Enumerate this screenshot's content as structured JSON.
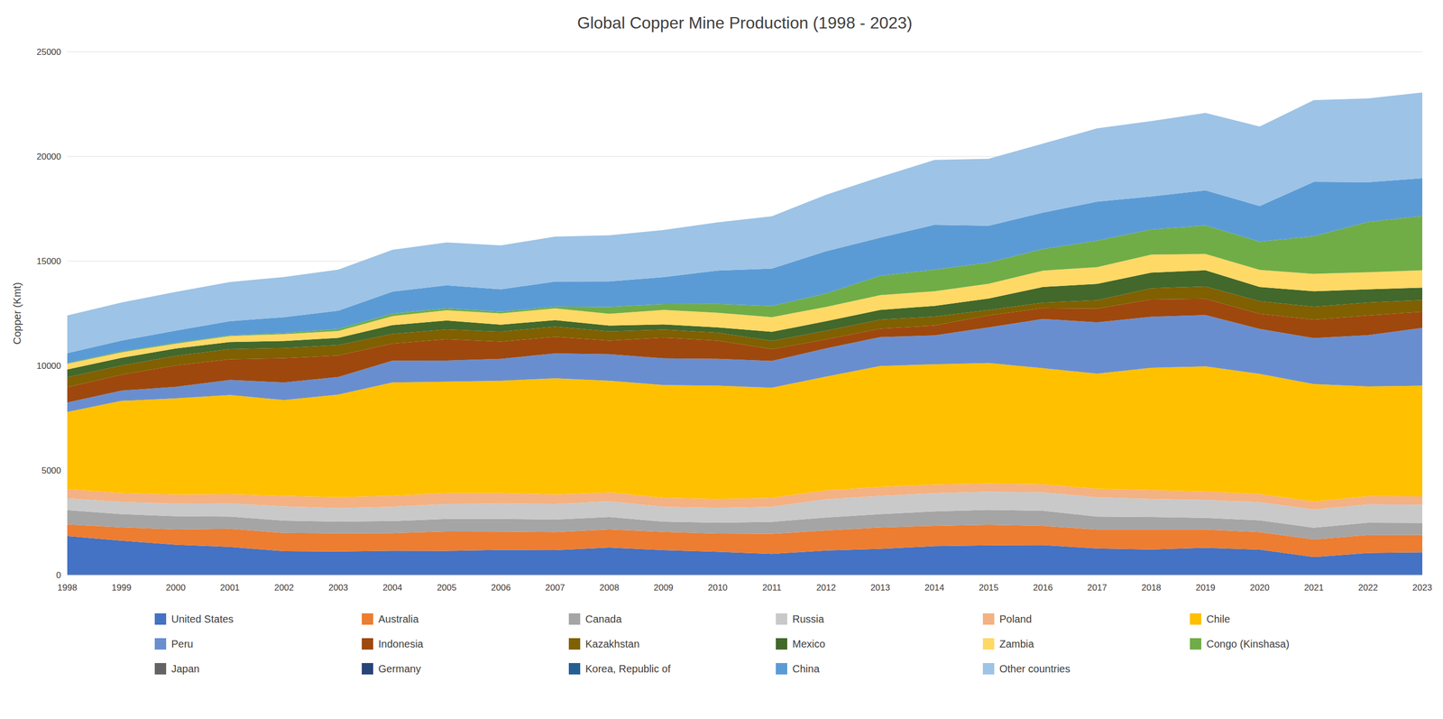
{
  "chart_data": {
    "type": "area",
    "stacked": true,
    "grid": true,
    "legend": "bottom",
    "title": "Global Copper Mine Production (1998 - 2023)",
    "ylabel": "Copper (Kmt)",
    "x": [
      1998,
      1999,
      2000,
      2001,
      2002,
      2003,
      2004,
      2005,
      2006,
      2007,
      2008,
      2009,
      2010,
      2011,
      2012,
      2013,
      2014,
      2015,
      2016,
      2017,
      2018,
      2019,
      2020,
      2021,
      2022,
      2023
    ],
    "xlim": [
      1998,
      2023
    ],
    "xticks": [
      1998,
      1999,
      2000,
      2001,
      2002,
      2003,
      2004,
      2005,
      2006,
      2007,
      2008,
      2009,
      2010,
      2011,
      2012,
      2013,
      2014,
      2015,
      2016,
      2017,
      2018,
      2019,
      2020,
      2021,
      2022,
      2023
    ],
    "ylim": [
      0,
      25000
    ],
    "yticks": [
      0,
      5000,
      10000,
      15000,
      20000,
      25000
    ],
    "series": [
      {
        "name": "United States",
        "color": "#4472C4",
        "values": [
          1860,
          1640,
          1450,
          1340,
          1140,
          1120,
          1160,
          1150,
          1200,
          1190,
          1310,
          1190,
          1110,
          1010,
          1170,
          1250,
          1380,
          1420,
          1430,
          1270,
          1220,
          1300,
          1210,
          860,
          1050,
          1080
        ]
      },
      {
        "name": "Australia",
        "color": "#ED7D31",
        "values": [
          560,
          640,
          730,
          870,
          870,
          870,
          840,
          930,
          870,
          860,
          870,
          870,
          870,
          960,
          960,
          1020,
          970,
          980,
          920,
          900,
          950,
          870,
          840,
          840,
          860,
          840
        ]
      },
      {
        "name": "Canada",
        "color": "#A5A5A5",
        "values": [
          680,
          630,
          630,
          580,
          590,
          560,
          580,
          600,
          610,
          600,
          590,
          490,
          520,
          570,
          620,
          640,
          690,
          710,
          720,
          620,
          600,
          560,
          560,
          560,
          590,
          570
        ]
      },
      {
        "name": "Russia",
        "color": "#C9C9C9",
        "values": [
          570,
          580,
          600,
          630,
          680,
          650,
          680,
          710,
          730,
          740,
          750,
          710,
          710,
          720,
          870,
          870,
          870,
          870,
          880,
          920,
          870,
          860,
          870,
          870,
          870,
          870
        ]
      },
      {
        "name": "Poland",
        "color": "#F4B183",
        "values": [
          430,
          430,
          430,
          440,
          500,
          520,
          530,
          530,
          510,
          450,
          430,
          430,
          420,
          430,
          430,
          430,
          410,
          390,
          380,
          410,
          420,
          400,
          390,
          380,
          400,
          400
        ]
      },
      {
        "name": "Chile",
        "color": "#FFC000",
        "values": [
          3690,
          4400,
          4600,
          4740,
          4580,
          4900,
          5410,
          5320,
          5360,
          5560,
          5330,
          5390,
          5420,
          5260,
          5430,
          5780,
          5750,
          5760,
          5550,
          5500,
          5840,
          5980,
          5740,
          5610,
          5240,
          5290
        ]
      },
      {
        "name": "Peru",
        "color": "#698ED0",
        "values": [
          450,
          490,
          550,
          720,
          840,
          840,
          1040,
          1010,
          1050,
          1190,
          1270,
          1275,
          1280,
          1280,
          1350,
          1380,
          1380,
          1700,
          2354,
          2450,
          2440,
          2450,
          2150,
          2200,
          2450,
          2760
        ]
      },
      {
        "name": "Indonesia",
        "color": "#9E480E",
        "values": [
          730,
          760,
          1020,
          990,
          1160,
          1030,
          820,
          1020,
          820,
          790,
          650,
          990,
          870,
          560,
          430,
          400,
          470,
          580,
          520,
          660,
          830,
          780,
          720,
          880,
          940,
          770
        ]
      },
      {
        "name": "Kazakhstan",
        "color": "#806000",
        "values": [
          480,
          440,
          460,
          480,
          490,
          500,
          460,
          460,
          480,
          490,
          440,
          380,
          380,
          400,
          410,
          430,
          430,
          250,
          260,
          400,
          530,
          590,
          600,
          620,
          620,
          560
        ]
      },
      {
        "name": "Mexico",
        "color": "#43682B",
        "values": [
          370,
          370,
          350,
          340,
          330,
          340,
          420,
          430,
          330,
          310,
          280,
          250,
          250,
          430,
          460,
          470,
          510,
          550,
          750,
          780,
          750,
          770,
          680,
          740,
          630,
          590
        ]
      },
      {
        "name": "Zambia",
        "color": "#FFD966",
        "values": [
          270,
          260,
          230,
          290,
          330,
          330,
          430,
          490,
          540,
          560,
          560,
          690,
          700,
          700,
          680,
          700,
          700,
          710,
          780,
          800,
          860,
          780,
          820,
          830,
          820,
          830
        ]
      },
      {
        "name": "Congo (Kinshasa)",
        "color": "#70AD47",
        "values": [
          30,
          40,
          40,
          30,
          50,
          100,
          120,
          100,
          80,
          90,
          330,
          280,
          420,
          530,
          640,
          930,
          1030,
          1010,
          1030,
          1270,
          1200,
          1360,
          1350,
          1800,
          2400,
          2600
        ]
      },
      {
        "name": "Japan",
        "color": "#636363",
        "values": [
          0,
          0,
          0,
          0,
          0,
          0,
          0,
          0,
          0,
          0,
          0,
          0,
          0,
          0,
          0,
          0,
          0,
          0,
          0,
          0,
          0,
          0,
          0,
          0,
          0,
          0
        ]
      },
      {
        "name": "Germany",
        "color": "#264478",
        "values": [
          0,
          0,
          0,
          0,
          0,
          0,
          0,
          0,
          0,
          0,
          0,
          0,
          0,
          0,
          0,
          0,
          0,
          0,
          0,
          0,
          0,
          0,
          0,
          0,
          0,
          0
        ]
      },
      {
        "name": "Korea, Republic of",
        "color": "#255E91",
        "values": [
          0,
          0,
          0,
          0,
          0,
          0,
          0,
          0,
          0,
          0,
          0,
          0,
          0,
          0,
          0,
          0,
          0,
          0,
          0,
          0,
          0,
          0,
          0,
          0,
          0,
          0
        ]
      },
      {
        "name": "China",
        "color": "#5B9BD5",
        "values": [
          480,
          520,
          590,
          680,
          760,
          870,
          1050,
          1090,
          1070,
          1190,
          1220,
          1290,
          1600,
          1790,
          2020,
          1820,
          2140,
          1760,
          1740,
          1860,
          1580,
          1680,
          1700,
          2600,
          1900,
          1800
        ]
      },
      {
        "name": "Other countries",
        "color": "#9DC3E6",
        "values": [
          1800,
          1820,
          1850,
          1870,
          1920,
          1960,
          2000,
          2050,
          2100,
          2150,
          2200,
          2250,
          2300,
          2500,
          2700,
          2900,
          3100,
          3200,
          3300,
          3500,
          3600,
          3700,
          3800,
          3900,
          4000,
          4100
        ]
      }
    ]
  }
}
